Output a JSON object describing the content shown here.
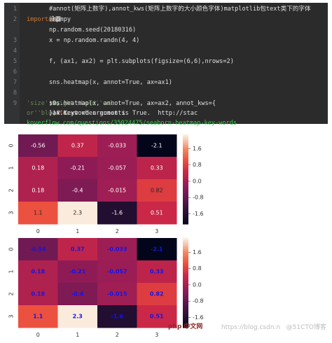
{
  "code": {
    "line_numbers": [
      "1",
      "2",
      "3",
      "4",
      "5",
      "6",
      "7",
      "8",
      "9"
    ],
    "lines": [
      [
        {
          "t": "#annot(矩阵上数字),annot_kws(矩阵上数字的大小颜色字体)matplotlib包text类下的字体",
          "c": "tx"
        }
      ],
      [
        {
          "t": "设置",
          "c": "tx"
        },
        {
          "t": "import",
          "c": "kw"
        },
        {
          "t": " numpy ",
          "c": "tx"
        },
        {
          "t": "as",
          "c": "kw"
        },
        {
          "t": " np",
          "c": "tx"
        }
      ],
      [
        {
          "t": "np.random.seed(20180316)",
          "c": "tx"
        }
      ],
      [
        {
          "t": "x = np.random.randn(4, 4)",
          "c": "tx"
        }
      ],
      [
        {
          "t": "",
          "c": "tx"
        }
      ],
      [
        {
          "t": "f, (ax1, ax2) = plt.subplots(figsize=(6,6),nrows=2)",
          "c": "tx"
        }
      ],
      [
        {
          "t": "",
          "c": "tx"
        }
      ],
      [
        {
          "t": "sns.heatmap(x, annot=True, ax=ax1)",
          "c": "tx"
        }
      ],
      [
        {
          "t": "",
          "c": "tx"
        }
      ],
      [
        {
          "t": "sns.heatmap(x, annot=True, ax=ax2, annot_kws={",
          "c": "tx"
        },
        {
          "t": "'size'",
          "c": "str"
        },
        {
          "t": ":9,",
          "c": "tx"
        },
        {
          "t": "'weight'",
          "c": "str"
        },
        {
          "t": ":",
          "c": "tx"
        },
        {
          "t": "'bold'",
          "c": "str"
        },
        {
          "t": ", ",
          "c": "tx"
        },
        {
          "t": "'col",
          "c": "str"
        }
      ],
      [
        {
          "t": "or'",
          "c": "str"
        },
        {
          "t": ":",
          "c": "tx"
        },
        {
          "t": "'blue'",
          "c": "str"
        },
        {
          "t": "})# Keyword arguments ",
          "c": "tx"
        },
        {
          "t": "for",
          "c": "kw"
        },
        {
          "t": " ax.text when annot is True.  http://stac",
          "c": "tx"
        }
      ],
      [
        {
          "t": "koverflow.com/questions/35024475/seaborn-heatmap-key-words",
          "c": "link"
        }
      ]
    ]
  },
  "chart_data": [
    {
      "type": "heatmap",
      "row_labels": [
        "0",
        "1",
        "2",
        "3"
      ],
      "col_labels": [
        "0",
        "1",
        "2",
        "3"
      ],
      "values": [
        [
          -0.56,
          0.37,
          -0.033,
          -2.1
        ],
        [
          0.18,
          -0.21,
          -0.057,
          0.33
        ],
        [
          0.18,
          -0.4,
          -0.015,
          0.82
        ],
        [
          1.1,
          2.3,
          -1.6,
          0.51
        ]
      ],
      "annotations": [
        [
          "-0.56",
          "0.37",
          "-0.033",
          "-2.1"
        ],
        [
          "0.18",
          "-0.21",
          "-0.057",
          "0.33"
        ],
        [
          "0.18",
          "-0.4",
          "-0.015",
          "0.82"
        ],
        [
          "1.1",
          "2.3",
          "-1.6",
          "0.51"
        ]
      ],
      "colorbar_ticks": [
        "1.6",
        "0.8",
        "0.0",
        "-0.8",
        "-1.6"
      ],
      "colorbar_range": [
        -2.1,
        2.3
      ],
      "annot_color": "auto"
    },
    {
      "type": "heatmap",
      "row_labels": [
        "0",
        "1",
        "2",
        "3"
      ],
      "col_labels": [
        "0",
        "1",
        "2",
        "3"
      ],
      "values": [
        [
          -0.56,
          0.37,
          -0.033,
          -2.1
        ],
        [
          0.18,
          -0.21,
          -0.057,
          0.33
        ],
        [
          0.18,
          -0.4,
          -0.015,
          0.82
        ],
        [
          1.1,
          2.3,
          -1.6,
          0.51
        ]
      ],
      "annotations": [
        [
          "-0.56",
          "0.37",
          "-0.033",
          "-2.1"
        ],
        [
          "0.18",
          "-0.21",
          "-0.057",
          "0.33"
        ],
        [
          "0.18",
          "-0.4",
          "-0.015",
          "0.82"
        ],
        [
          "1.1",
          "2.3",
          "-1.6",
          "0.51"
        ]
      ],
      "colorbar_ticks": [
        "1.6",
        "0.8",
        "0.0",
        "-0.8",
        "-1.6"
      ],
      "colorbar_range": [
        -2.1,
        2.3
      ],
      "annot_color": "#1515e6",
      "annot_weight": "bold"
    }
  ],
  "watermark": "https://blog.csdn.n   @51CTO博客",
  "php_badge": "php 中文网"
}
